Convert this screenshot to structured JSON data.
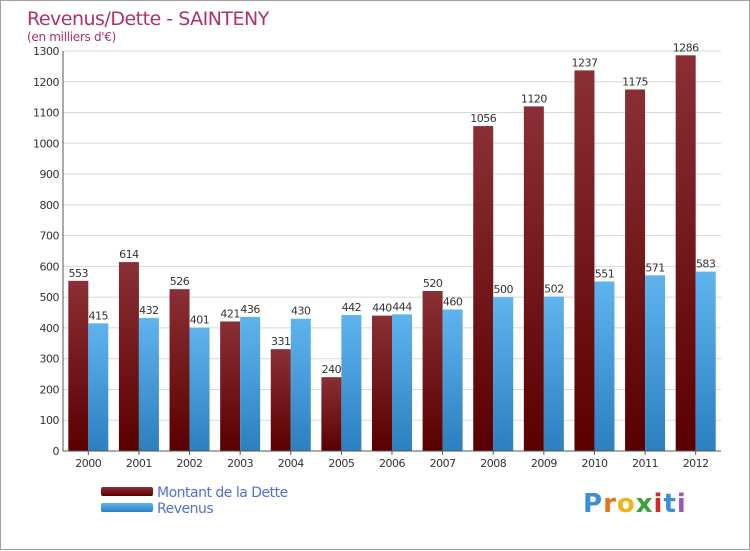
{
  "colors": {
    "dette_top": "#8a2f35",
    "dette_bottom": "#5a0000",
    "revenus_top": "#5fb4ee",
    "revenus_bottom": "#2c7fc0",
    "title": "#b0306a",
    "legend_text": "#4f6fe0",
    "grid": "#d8d8d8",
    "axis_text": "#333333"
  },
  "chart_data": {
    "type": "bar",
    "title": "Revenus/Dette - SAINTENY",
    "subtitle": "(en milliers d'€)",
    "categories": [
      "2000",
      "2001",
      "2002",
      "2003",
      "2004",
      "2005",
      "2006",
      "2007",
      "2008",
      "2009",
      "2010",
      "2011",
      "2012"
    ],
    "series": [
      {
        "name": "Montant de la Dette",
        "values": [
          553,
          614,
          526,
          421,
          331,
          240,
          440,
          520,
          1056,
          1120,
          1237,
          1175,
          1286
        ]
      },
      {
        "name": "Revenus",
        "values": [
          415,
          432,
          401,
          436,
          430,
          442,
          444,
          460,
          500,
          502,
          551,
          571,
          583
        ]
      }
    ],
    "ylim": [
      0,
      1300
    ],
    "yticks": [
      0,
      100,
      200,
      300,
      400,
      500,
      600,
      700,
      800,
      900,
      1000,
      1100,
      1200,
      1300
    ],
    "grid": true,
    "legend_position": "bottom-left"
  },
  "legend": {
    "items": [
      {
        "label": "Montant de la Dette"
      },
      {
        "label": "Revenus"
      }
    ]
  },
  "logo": {
    "letters": [
      "P",
      "r",
      "o",
      "x",
      "i",
      "t",
      "i"
    ],
    "colors": [
      "#3a8fd6",
      "#e8731c",
      "#f2b21a",
      "#3aa335",
      "#d02b2b",
      "#3a8fd6",
      "#9b59b6"
    ]
  }
}
